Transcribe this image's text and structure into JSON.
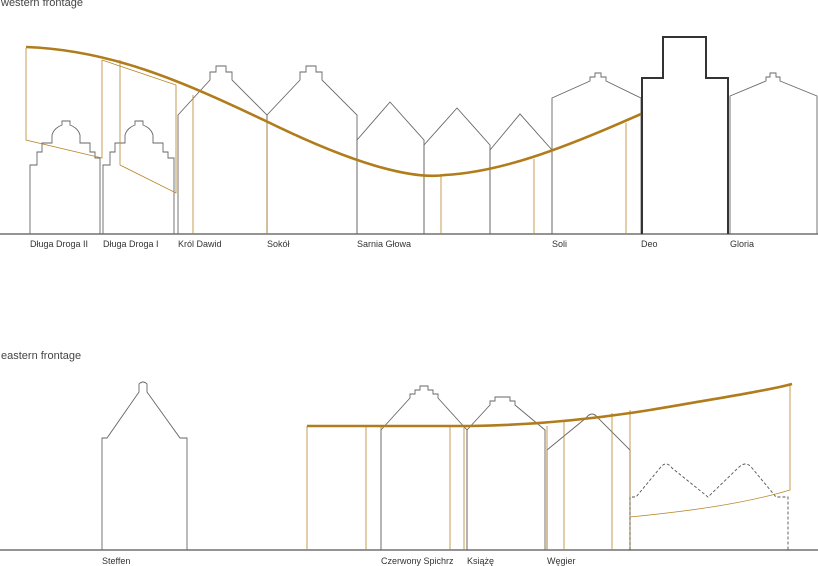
{
  "western": {
    "title": "western frontage",
    "labels": [
      "Długa Droga II",
      "Długa Droga I",
      "Król Dawid",
      "Sokół",
      "Sarnia Głowa",
      "Soli",
      "Deo",
      "Gloria"
    ]
  },
  "eastern": {
    "title": "eastern frontage",
    "labels": [
      "Steffen",
      "Czerwony Spichrz",
      "Książę",
      "Węgier"
    ]
  },
  "colors": {
    "accent": "#b07c1c",
    "building": "#666666",
    "ground": "#555555"
  }
}
